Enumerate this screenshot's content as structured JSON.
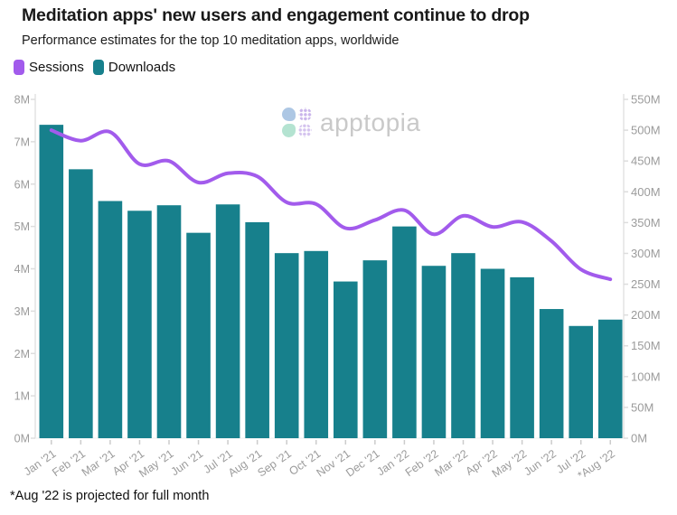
{
  "header": {
    "title": "Meditation apps' new users and engagement continue to drop",
    "subtitle": "Performance estimates for the top 10 meditation apps, worldwide"
  },
  "legend": {
    "items": [
      {
        "label": "Sessions",
        "color": "#A25BEC",
        "series_type": "line"
      },
      {
        "label": "Downloads",
        "color": "#17808C",
        "series_type": "bar"
      }
    ]
  },
  "watermark": {
    "brand": "apptopia",
    "icon": "apptopia-clover-logo"
  },
  "footnote": "*Aug '22 is projected for full month",
  "colors": {
    "downloads_bar": "#17808C",
    "sessions_line": "#A25BEC",
    "axis_text": "#9B9B9B",
    "spine": "#E4E4E4",
    "background": "#FFFFFF"
  },
  "chart_data": {
    "type": "combo",
    "subtypes": [
      "bar",
      "line"
    ],
    "dual_axis": true,
    "grid": false,
    "legend_position": "top-left",
    "categories": [
      "Jan '21",
      "Feb '21",
      "Mar '21",
      "Apr '21",
      "May '21",
      "Jun '21",
      "Jul '21",
      "Aug '21",
      "Sep '21",
      "Oct '21",
      "Nov '21",
      "Dec '21",
      "Jan '22",
      "Feb '22",
      "Mar '22",
      "Apr '22",
      "May '22",
      "Jun '22",
      "Jul '22",
      "*Aug '22"
    ],
    "series": [
      {
        "name": "Downloads",
        "type": "bar",
        "axis": "left",
        "color": "#17808C",
        "unit": "millions of downloads",
        "values_millions": [
          7.4,
          6.35,
          5.6,
          5.37,
          5.5,
          4.85,
          5.52,
          5.1,
          4.37,
          4.42,
          3.7,
          4.2,
          5.0,
          4.07,
          4.37,
          4.0,
          3.8,
          3.05,
          2.65,
          2.8
        ]
      },
      {
        "name": "Sessions",
        "type": "line",
        "axis": "right",
        "color": "#A25BEC",
        "unit": "millions of sessions",
        "values_millions": [
          500,
          483,
          497,
          445,
          450,
          415,
          430,
          425,
          383,
          380,
          341,
          354,
          370,
          331,
          361,
          343,
          351,
          320,
          274,
          258
        ]
      }
    ],
    "left_axis": {
      "min": 0,
      "max": 8,
      "tick_step": 1,
      "tick_labels": [
        "0M",
        "1M",
        "2M",
        "3M",
        "4M",
        "5M",
        "6M",
        "7M",
        "8M"
      ]
    },
    "right_axis": {
      "min": 0,
      "max": 550,
      "tick_step": 50,
      "tick_labels": [
        "0M",
        "50M",
        "100M",
        "150M",
        "200M",
        "250M",
        "300M",
        "350M",
        "400M",
        "450M",
        "500M",
        "550M"
      ]
    }
  }
}
